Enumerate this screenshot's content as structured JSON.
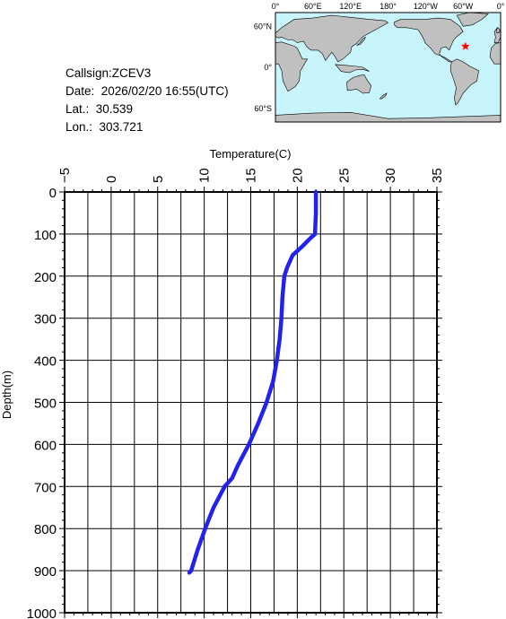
{
  "info": {
    "callsign": "Callsign:ZCEV3",
    "date": "Date:  2026/02/20 16:55(UTC)",
    "lat": "Lat.:  30.539",
    "lon": "Lon.:  303.721"
  },
  "map": {
    "lon_labels": [
      "0°",
      "60°E",
      "120°E",
      "180°",
      "120°W",
      "60°W",
      "0°"
    ],
    "lat_labels": [
      "60°N",
      "0°",
      "60°S"
    ],
    "ocean_color": "#c8f4fc",
    "land_color": "#c0c0c0",
    "marker_color": "#ff0000",
    "marker": {
      "lon": 303.721,
      "lat": 30.539
    }
  },
  "chart_data": {
    "type": "line",
    "title": "",
    "xlabel": "Temperature(C)",
    "ylabel": "Depth(m)",
    "xlim": [
      -5,
      35
    ],
    "ylim": [
      1000,
      0
    ],
    "x_ticks": [
      "−5",
      "0",
      "5",
      "10",
      "15",
      "20",
      "25",
      "30",
      "35"
    ],
    "y_ticks": [
      "0",
      "100",
      "200",
      "300",
      "400",
      "500",
      "600",
      "700",
      "800",
      "900",
      "1000"
    ],
    "line_color": "#2222ee",
    "series": [
      {
        "depth": [
          0,
          50,
          100,
          110,
          130,
          150,
          180,
          200,
          250,
          300,
          350,
          400,
          450,
          500,
          550,
          600,
          650,
          680,
          700,
          750,
          800,
          850,
          900,
          905
        ],
        "temperature": [
          22.0,
          22.0,
          21.9,
          21.4,
          20.5,
          19.5,
          18.9,
          18.6,
          18.4,
          18.3,
          18.1,
          17.8,
          17.4,
          16.7,
          15.8,
          14.8,
          13.6,
          13.0,
          12.2,
          11.0,
          10.1,
          9.3,
          8.6,
          8.4
        ]
      }
    ]
  }
}
